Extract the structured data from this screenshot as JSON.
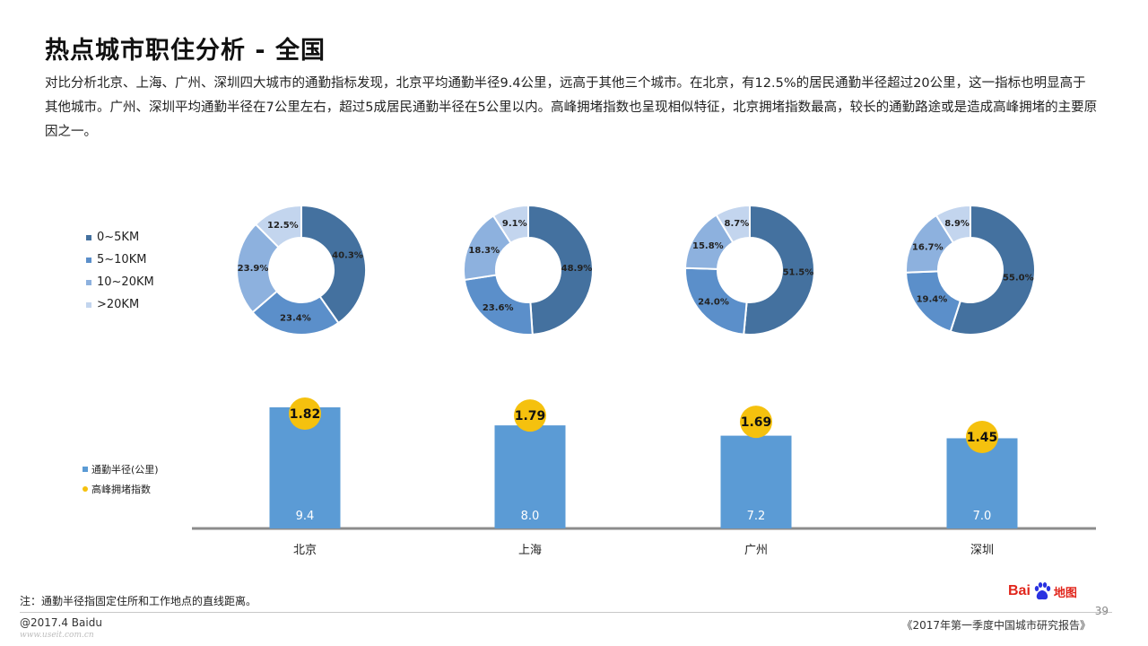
{
  "title": "热点城市职住分析 - 全国",
  "summary": "对比分析北京、上海、广州、深圳四大城市的通勤指标发现，北京平均通勤半径9.4公里，远高于其他三个城市。在北京，有12.5%的居民通勤半径超过20公里，这一指标也明显高于其他城市。广州、深圳平均通勤半径在7公里左右，超过5成居民通勤半径在5公里以内。高峰拥堵指数也呈现相似特征，北京拥堵指数最高，较长的通勤路途或是造成高峰拥堵的主要原因之一。",
  "colors": {
    "band_0_5": "#44719f",
    "band_5_10": "#5b8fca",
    "band_10_20": "#8db1de",
    "band_20p": "#c3d5ee",
    "bar": "#5b9bd5",
    "index_dot": "#f5c10e",
    "axis": "#8c8c8c"
  },
  "legend_top": [
    {
      "label": "0~5KM"
    },
    {
      "label": "5~10KM"
    },
    {
      "label": "10~20KM"
    },
    {
      "label": ">20KM"
    }
  ],
  "legend_bar": [
    {
      "label": "通勤半径(公里)"
    },
    {
      "label": "高峰拥堵指数"
    }
  ],
  "chart_data": [
    {
      "type": "pie",
      "subtype": "donut",
      "categories": [
        "0~5KM",
        "5~10KM",
        "10~20KM",
        ">20KM"
      ],
      "series": [
        {
          "values": [
            40.3,
            23.4,
            23.9,
            12.5
          ]
        },
        {
          "values": [
            48.9,
            23.6,
            18.3,
            9.1
          ]
        },
        {
          "values": [
            51.5,
            24.0,
            15.8,
            8.7
          ]
        },
        {
          "values": [
            55.0,
            19.4,
            16.7,
            8.9
          ]
        }
      ],
      "legend": "left"
    },
    {
      "type": "bar",
      "categories": [
        "北京",
        "上海",
        "广州",
        "深圳"
      ],
      "series": [
        {
          "name": "通勤半径(公里)",
          "values": [
            9.4,
            8.0,
            7.2,
            7.0
          ]
        },
        {
          "name": "高峰拥堵指数",
          "values": [
            1.82,
            1.79,
            1.69,
            1.45
          ]
        }
      ],
      "legend": "left"
    }
  ],
  "footnote": "注：通勤半径指固定住所和工作地点的直线距离。",
  "copyright": "@2017.4 Baidu",
  "watermark": "www.useit.com.cn",
  "report_title": "《2017年第一季度中国城市研究报告》",
  "page_number": "39",
  "logo": {
    "text_left": "Bai",
    "text_right": "地图"
  }
}
